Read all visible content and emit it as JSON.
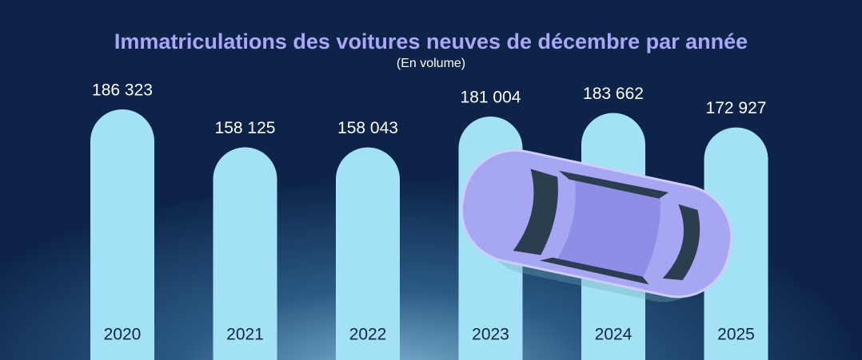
{
  "chart_data": {
    "type": "bar",
    "title": "Immatriculations des voitures neuves de décembre par année",
    "subtitle": "(En volume)",
    "categories": [
      "2020",
      "2021",
      "2022",
      "2023",
      "2024",
      "2025"
    ],
    "values": [
      186323,
      158125,
      158043,
      181004,
      183662,
      172927
    ],
    "value_labels": [
      "186 323",
      "158 125",
      "158 043",
      "181 004",
      "183 662",
      "172 927"
    ],
    "color": "#a3e2f6"
  }
}
